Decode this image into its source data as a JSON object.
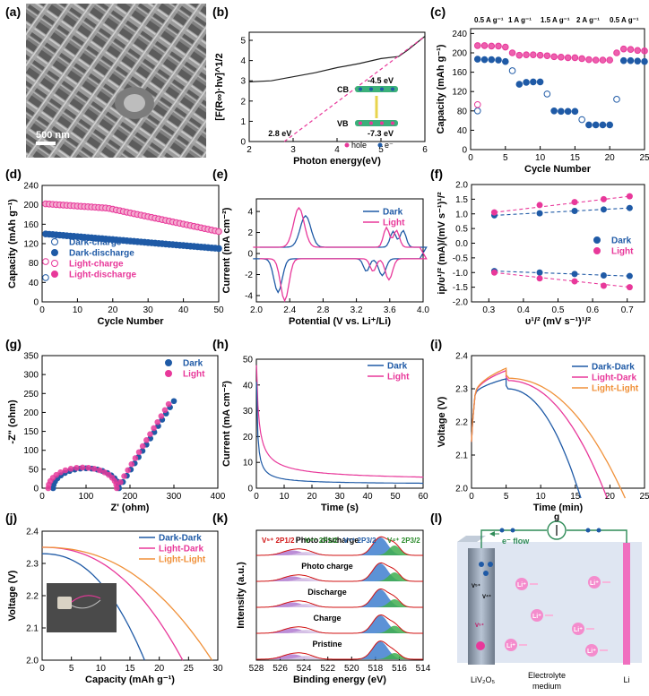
{
  "figure": {
    "colors": {
      "dark": "#1f5aa6",
      "light": "#e8389a",
      "orange": "#f0913a",
      "axis": "#000000",
      "sem_bg": "#6d6d6d"
    },
    "panel_labels": [
      "(a)",
      "(b)",
      "(c)",
      "(d)",
      "(e)",
      "(f)",
      "(g)",
      "(h)",
      "(i)",
      "(j)",
      "(k)",
      "(l)"
    ]
  },
  "chart_data": [
    {
      "panel": "a",
      "type": "image",
      "scale_bar": "500 nm"
    },
    {
      "panel": "b",
      "type": "line",
      "xlabel": "Photon energy(eV)",
      "ylabel": "[F(R∞)·hv]^1/2",
      "xlim": [
        2,
        6
      ],
      "ylim": [
        0,
        5.4
      ],
      "xticks": [
        "2",
        "3",
        "4",
        "5",
        "6"
      ],
      "yticks": [
        "0",
        "1",
        "2",
        "3",
        "4",
        "5"
      ],
      "series": [
        {
          "name": "spectrum",
          "style": "solid",
          "x": [
            2,
            2.5,
            3,
            3.5,
            4,
            4.5,
            5,
            5.4,
            5.6,
            5.8,
            6
          ],
          "y": [
            2.95,
            3.0,
            3.2,
            3.4,
            3.65,
            3.85,
            4.1,
            4.2,
            4.5,
            4.85,
            5.2
          ]
        },
        {
          "name": "tangent",
          "style": "dashed",
          "x": [
            2.8,
            6
          ],
          "y": [
            0,
            5.2
          ]
        }
      ],
      "annotations": {
        "gap": "2.8 eV",
        "cb_label": "CB",
        "vb_label": "VB",
        "cb_energy": "-4.5 eV",
        "vb_energy": "-7.3 eV",
        "legend_hole": "hole",
        "legend_electron": "e⁻"
      }
    },
    {
      "panel": "c",
      "type": "scatter",
      "xlabel": "Cycle Number",
      "ylabel": "Capacity (mAh g⁻¹)",
      "xlim": [
        0,
        25
      ],
      "ylim": [
        0,
        250
      ],
      "xticks": [
        "0",
        "5",
        "10",
        "15",
        "20",
        "25"
      ],
      "yticks": [
        "0",
        "40",
        "80",
        "120",
        "160",
        "200",
        "240"
      ],
      "rate_labels": [
        "0.5 A g⁻¹",
        "1 A g⁻¹",
        "1.5 A g⁻¹",
        "2 A g⁻¹",
        "0.5 A g⁻¹"
      ],
      "series": [
        {
          "name": "Dark",
          "values": [
            [
              1,
              187
            ],
            [
              2,
              186
            ],
            [
              3,
              186
            ],
            [
              4,
              185
            ],
            [
              5,
              182
            ],
            [
              6,
              163
            ],
            [
              7,
              135
            ],
            [
              8,
              139
            ],
            [
              9,
              140
            ],
            [
              10,
              140
            ],
            [
              11,
              115
            ],
            [
              12,
              80
            ],
            [
              13,
              79
            ],
            [
              14,
              79
            ],
            [
              15,
              79
            ],
            [
              16,
              62
            ],
            [
              17,
              51
            ],
            [
              18,
              51
            ],
            [
              19,
              51
            ],
            [
              20,
              51
            ],
            [
              21,
              104
            ],
            [
              22,
              184
            ],
            [
              23,
              184
            ],
            [
              24,
              183
            ],
            [
              25,
              182
            ]
          ]
        },
        {
          "name": "Light",
          "values": [
            [
              1,
              215
            ],
            [
              2,
              215
            ],
            [
              3,
              214
            ],
            [
              4,
              214
            ],
            [
              5,
              212
            ],
            [
              6,
              200
            ],
            [
              7,
              195
            ],
            [
              8,
              196
            ],
            [
              9,
              196
            ],
            [
              10,
              195
            ],
            [
              11,
              194
            ],
            [
              12,
              192
            ],
            [
              13,
              191
            ],
            [
              14,
              190
            ],
            [
              15,
              190
            ],
            [
              16,
              188
            ],
            [
              17,
              186
            ],
            [
              18,
              185
            ],
            [
              19,
              185
            ],
            [
              20,
              185
            ],
            [
              21,
              200
            ],
            [
              22,
              208
            ],
            [
              23,
              207
            ],
            [
              24,
              205
            ],
            [
              25,
              204
            ]
          ]
        }
      ],
      "outliers": [
        {
          "x": 1,
          "y": 80,
          "series": "Dark"
        },
        {
          "x": 1,
          "y": 93,
          "series": "Light"
        }
      ]
    },
    {
      "panel": "d",
      "type": "scatter",
      "xlabel": "Cycle Number",
      "ylabel": "Capacity (mAh g⁻¹)",
      "xlim": [
        0,
        50
      ],
      "ylim": [
        0,
        240
      ],
      "xticks": [
        "0",
        "10",
        "20",
        "30",
        "40",
        "50"
      ],
      "yticks": [
        "0",
        "40",
        "80",
        "120",
        "160",
        "200",
        "240"
      ],
      "legend": [
        "Dark-charge",
        "Dark-discharge",
        "Light-charge",
        "Light-discharge"
      ],
      "series": [
        {
          "name": "Dark",
          "start": 140,
          "end": 110
        },
        {
          "name": "Light",
          "start": 202,
          "plateau_end": 18,
          "mid": 180,
          "end": 145
        }
      ],
      "outliers": [
        {
          "x": 1,
          "y": 50,
          "series": "Dark"
        },
        {
          "x": 1,
          "y": 83,
          "series": "Light"
        }
      ]
    },
    {
      "panel": "e",
      "type": "line",
      "xlabel": "Potential (V vs. Li⁺/Li)",
      "ylabel": "Current (mA cm⁻²)",
      "xlim": [
        2.0,
        4.0
      ],
      "ylim": [
        -4.6,
        5.2
      ],
      "xticks": [
        "2.0",
        "2.4",
        "2.8",
        "3.2",
        "3.6",
        "4.0"
      ],
      "yticks": [
        "-4",
        "-2",
        "0",
        "2",
        "4"
      ],
      "legend": [
        "Dark",
        "Light"
      ]
    },
    {
      "panel": "f",
      "type": "scatter",
      "xlabel": "υ¹/² (mV s⁻¹)¹/²",
      "ylabel": "ip/υ¹/² (mA)/(mV s⁻¹)¹/²",
      "xlim": [
        0.25,
        0.75
      ],
      "ylim": [
        -2.0,
        2.0
      ],
      "xticks": [
        "0.3",
        "0.4",
        "0.5",
        "0.6",
        "0.7"
      ],
      "yticks": [
        "-2.0",
        "-1.5",
        "-1.0",
        "-0.5",
        "0.0",
        "0.5",
        "1.0",
        "1.5",
        "2.0"
      ],
      "legend": [
        "Dark",
        "Light"
      ],
      "series": [
        {
          "name": "Dark",
          "x": [
            0.316,
            0.447,
            0.548,
            0.632,
            0.707
          ],
          "y": [
            0.95,
            1.02,
            1.1,
            1.15,
            1.2
          ]
        },
        {
          "name": "Light",
          "x": [
            0.316,
            0.447,
            0.548,
            0.632,
            0.707
          ],
          "y": [
            1.05,
            1.3,
            1.4,
            1.5,
            1.6
          ]
        },
        {
          "name": "Dark",
          "x": [
            0.316,
            0.447,
            0.548,
            0.632,
            0.707
          ],
          "y": [
            -0.95,
            -1.0,
            -1.05,
            -1.1,
            -1.12
          ]
        },
        {
          "name": "Light",
          "x": [
            0.316,
            0.447,
            0.548,
            0.632,
            0.707
          ],
          "y": [
            -1.0,
            -1.2,
            -1.3,
            -1.45,
            -1.5
          ]
        }
      ]
    },
    {
      "panel": "g",
      "type": "scatter",
      "xlabel": "Z' (ohm)",
      "ylabel": "-Z\" (ohm)",
      "xlim": [
        0,
        400
      ],
      "ylim": [
        0,
        350
      ],
      "xticks": [
        "0",
        "100",
        "200",
        "300",
        "400"
      ],
      "yticks": [
        "0",
        "50",
        "100",
        "150",
        "200",
        "250",
        "300",
        "350"
      ],
      "legend": [
        "Dark",
        "Light"
      ]
    },
    {
      "panel": "h",
      "type": "line",
      "xlabel": "Time (s)",
      "ylabel": "Current (mA cm⁻²)",
      "xlim": [
        0,
        60
      ],
      "ylim": [
        0,
        50
      ],
      "xticks": [
        "0",
        "10",
        "20",
        "30",
        "40",
        "50",
        "60"
      ],
      "yticks": [
        "0",
        "10",
        "20",
        "30",
        "40",
        "50"
      ],
      "legend": [
        "Dark",
        "Light"
      ]
    },
    {
      "panel": "i",
      "type": "line",
      "xlabel": "Time (min)",
      "ylabel": "Voltage (V)",
      "xlim": [
        0,
        25
      ],
      "ylim": [
        2.0,
        2.4
      ],
      "xticks": [
        "0",
        "5",
        "10",
        "15",
        "20",
        "25"
      ],
      "yticks": [
        "2.0",
        "2.1",
        "2.2",
        "2.3",
        "2.4"
      ],
      "legend": [
        "Dark-Dark",
        "Light-Dark",
        "Light-Light"
      ]
    },
    {
      "panel": "j",
      "type": "line",
      "xlabel": "Capacity (mAh g⁻¹)",
      "ylabel": "Voltage (V)",
      "xlim": [
        0,
        30
      ],
      "ylim": [
        2.0,
        2.4
      ],
      "xticks": [
        "0",
        "5",
        "10",
        "15",
        "20",
        "25",
        "30"
      ],
      "yticks": [
        "2.0",
        "2.1",
        "2.2",
        "2.3",
        "2.4"
      ],
      "legend": [
        "Dark-Dark",
        "Light-Dark",
        "Light-Light"
      ],
      "endpoints": {
        "Dark-Dark": 17.5,
        "Light-Dark": 24,
        "Light-Light": 29
      }
    },
    {
      "panel": "k",
      "type": "line",
      "xlabel": "Binding energy (eV)",
      "ylabel": "Intensity (a.u.)",
      "xlim": [
        528,
        514
      ],
      "xticks": [
        "528",
        "526",
        "524",
        "522",
        "520",
        "518",
        "516",
        "514"
      ],
      "peak_labels": [
        "V⁵⁺ 2P1/2",
        "V⁴⁺ 2P1/2",
        "V⁵⁺ 2P3/2",
        "V⁴⁺ 2P3/2"
      ],
      "spectra": [
        "Photo discharge",
        "Photo charge",
        "Discharge",
        "Charge",
        "Pristine"
      ]
    },
    {
      "panel": "l",
      "type": "diagram",
      "labels": {
        "g": "g",
        "flow": "e⁻ flow",
        "cathode": "LiV₂O₅",
        "electrolyte": "Electrolyte",
        "medium": "medium",
        "anode": "Li",
        "li_ion": "Li⁺",
        "v5": "V⁵⁺",
        "v4": "V⁴⁺"
      }
    }
  ]
}
